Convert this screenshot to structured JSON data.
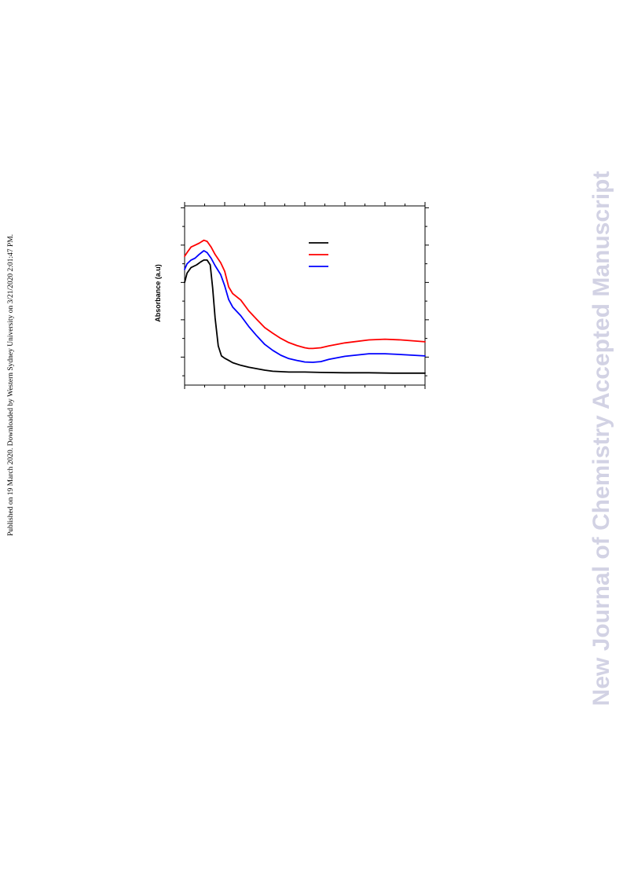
{
  "side_note": "Published on 19 March 2020. Downloaded by Western Sydney University on 3/21/2020 2:01:47 PM.",
  "watermark": "New Journal of Chemistry Accepted Manuscript",
  "chart_data": {
    "type": "line",
    "ylabel": "Absorbance (a.u)",
    "xlabel": "",
    "title": "",
    "grid": false,
    "legend": "top-center, lines only (no labels visible)",
    "xlim": [
      0,
      300
    ],
    "ylim": [
      0,
      4.8
    ],
    "x_major_ticks": [
      0,
      50,
      100,
      150,
      200,
      250,
      300
    ],
    "y_major_ticks": [
      0.75,
      1.75,
      2.75,
      3.75,
      4.75
    ],
    "series": [
      {
        "color": "#000000",
        "x": [
          0,
          3,
          8,
          15,
          20,
          24,
          28,
          32,
          35,
          38,
          42,
          46,
          50,
          55,
          60,
          70,
          80,
          90,
          100,
          110,
          120,
          130,
          150,
          170,
          200,
          230,
          260,
          280,
          300
        ],
        "y": [
          2.75,
          3.0,
          3.15,
          3.22,
          3.3,
          3.35,
          3.35,
          3.22,
          2.6,
          1.8,
          1.05,
          0.78,
          0.72,
          0.66,
          0.6,
          0.53,
          0.48,
          0.44,
          0.4,
          0.37,
          0.36,
          0.35,
          0.35,
          0.34,
          0.33,
          0.33,
          0.32,
          0.32,
          0.32
        ]
      },
      {
        "color": "#ff0000",
        "x": [
          0,
          3,
          8,
          13,
          18,
          24,
          28,
          33,
          38,
          45,
          50,
          55,
          60,
          70,
          80,
          90,
          100,
          110,
          120,
          130,
          140,
          150,
          155,
          160,
          170,
          180,
          200,
          230,
          250,
          270,
          300
        ],
        "y": [
          3.45,
          3.55,
          3.7,
          3.75,
          3.8,
          3.88,
          3.85,
          3.7,
          3.5,
          3.28,
          3.05,
          2.63,
          2.45,
          2.28,
          1.99,
          1.76,
          1.54,
          1.39,
          1.25,
          1.14,
          1.06,
          1.0,
          0.98,
          0.98,
          1.0,
          1.05,
          1.13,
          1.21,
          1.23,
          1.21,
          1.16
        ]
      },
      {
        "color": "#0000ff",
        "x": [
          0,
          3,
          8,
          13,
          18,
          24,
          28,
          33,
          38,
          45,
          50,
          55,
          60,
          70,
          80,
          90,
          100,
          110,
          120,
          130,
          140,
          150,
          160,
          170,
          180,
          200,
          230,
          250,
          270,
          300
        ],
        "y": [
          3.1,
          3.25,
          3.35,
          3.4,
          3.5,
          3.6,
          3.55,
          3.4,
          3.2,
          2.96,
          2.66,
          2.29,
          2.09,
          1.86,
          1.57,
          1.32,
          1.09,
          0.93,
          0.8,
          0.71,
          0.66,
          0.62,
          0.61,
          0.63,
          0.69,
          0.77,
          0.84,
          0.84,
          0.82,
          0.78
        ]
      }
    ]
  }
}
